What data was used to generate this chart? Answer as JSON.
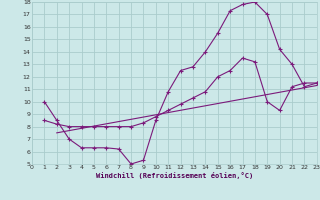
{
  "xlabel": "Windchill (Refroidissement éolien,°C)",
  "background_color": "#cce8e8",
  "grid_color": "#aacccc",
  "line_color": "#7b1a7b",
  "xlim": [
    0,
    23
  ],
  "ylim": [
    5,
    18
  ],
  "xticks": [
    0,
    1,
    2,
    3,
    4,
    5,
    6,
    7,
    8,
    9,
    10,
    11,
    12,
    13,
    14,
    15,
    16,
    17,
    18,
    19,
    20,
    21,
    22,
    23
  ],
  "yticks": [
    5,
    6,
    7,
    8,
    9,
    10,
    11,
    12,
    13,
    14,
    15,
    16,
    17,
    18
  ],
  "line1_x": [
    1,
    2,
    3,
    4,
    5,
    6,
    7,
    8,
    9,
    10,
    11,
    12,
    13,
    14,
    15,
    16,
    17,
    18,
    19,
    20,
    21,
    22,
    23
  ],
  "line1_y": [
    10.0,
    8.5,
    7.0,
    6.3,
    6.3,
    6.3,
    6.2,
    5.0,
    5.3,
    8.5,
    10.8,
    12.5,
    12.8,
    14.0,
    15.5,
    17.3,
    17.8,
    18.0,
    17.0,
    14.2,
    13.0,
    11.2,
    11.5
  ],
  "line2_x": [
    1,
    2,
    3,
    4,
    5,
    6,
    7,
    8,
    9,
    10,
    11,
    12,
    13,
    14,
    15,
    16,
    17,
    18,
    19,
    20,
    21,
    22,
    23
  ],
  "line2_y": [
    8.5,
    8.2,
    8.0,
    8.0,
    8.0,
    8.0,
    8.0,
    8.0,
    8.3,
    8.8,
    9.3,
    9.8,
    10.3,
    10.8,
    12.0,
    12.5,
    13.5,
    13.2,
    10.0,
    9.3,
    11.2,
    11.5,
    11.5
  ],
  "line3_x": [
    2,
    23
  ],
  "line3_y": [
    7.5,
    11.3
  ],
  "figsize": [
    3.2,
    2.0
  ],
  "dpi": 100
}
